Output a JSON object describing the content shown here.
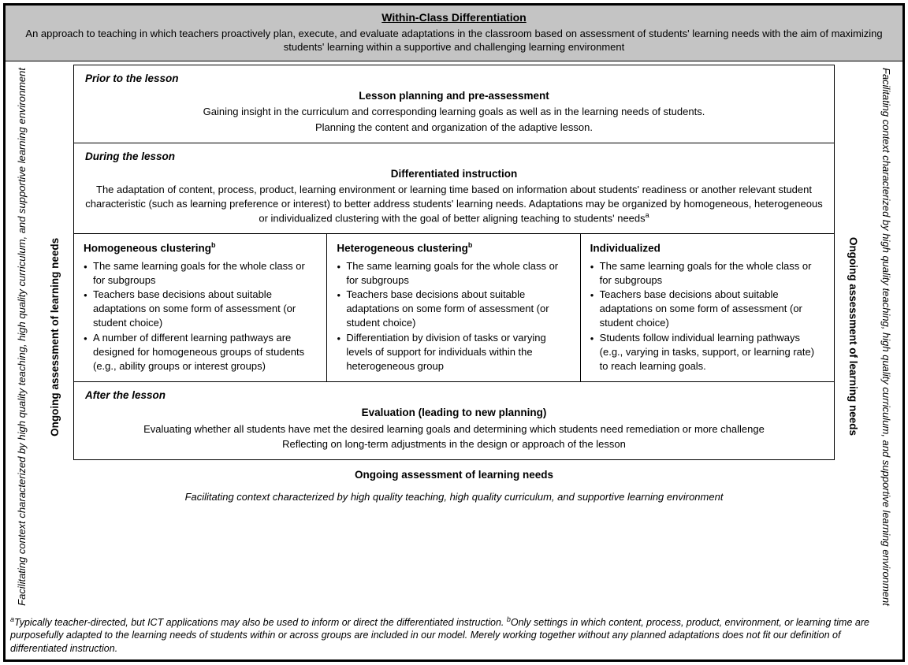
{
  "colors": {
    "header_bg": "#c4c4c4",
    "border": "#000000",
    "bg": "#ffffff",
    "text": "#000000"
  },
  "header": {
    "title": "Within-Class Differentiation",
    "desc": "An approach to teaching in which teachers proactively plan, execute, and evaluate adaptations in the classroom based on assessment of students' learning needs with the aim of maximizing students' learning within a supportive and challenging learning environment"
  },
  "side": {
    "context": "Facilitating context characterized by high quality teaching, high quality curriculum, and supportive learning environment",
    "assessment": "Ongoing assessment of learning needs"
  },
  "prior": {
    "label": "Prior to the lesson",
    "title": "Lesson planning and pre-assessment",
    "line1": "Gaining insight in the curriculum and corresponding learning goals as well as in the learning needs of students.",
    "line2": "Planning the content and organization of the adaptive lesson."
  },
  "during": {
    "label": "During the lesson",
    "title": "Differentiated instruction",
    "body": "The adaptation of content, process, product, learning environment or learning time based on information about students' readiness or another relevant student characteristic (such as learning preference or interest) to better address students' learning needs. Adaptations may be organized by homogeneous, heterogeneous or individualized clustering with the goal of better aligning teaching to students' needs",
    "sup": "a"
  },
  "clusters": [
    {
      "title": "Homogeneous clustering",
      "sup": "b",
      "items": [
        "The same learning goals for the whole class or for subgroups",
        "Teachers base decisions about suitable adaptations on some form of assessment (or student choice)",
        "A number of different learning pathways are designed for homogeneous groups of students (e.g., ability groups or interest groups)"
      ]
    },
    {
      "title": "Heterogeneous clustering",
      "sup": "b",
      "items": [
        "The same learning goals for the whole class or for subgroups",
        "Teachers base decisions about suitable adaptations on some form of assessment (or student choice)",
        "Differentiation by division of tasks or varying levels of support for individuals within the heterogeneous group"
      ]
    },
    {
      "title": "Individualized",
      "sup": "",
      "items": [
        "The same learning goals for the whole class or for subgroups",
        "Teachers base decisions about suitable adaptations on some form of assessment (or student choice)",
        "Students follow individual learning pathways (e.g., varying in tasks, support, or learning rate) to reach learning goals."
      ]
    }
  ],
  "after": {
    "label": "After the lesson",
    "title": "Evaluation (leading to new planning)",
    "line1": "Evaluating whether all students have met the desired learning goals and determining which students need remediation or more challenge",
    "line2": "Reflecting on long-term adjustments in the design or approach of the lesson"
  },
  "bottom": {
    "assessment": "Ongoing assessment of learning needs",
    "context": "Facilitating context characterized by high quality teaching, high quality curriculum, and supportive learning environment"
  },
  "footnotes": {
    "a_sup": "a",
    "a_text": "Typically teacher-directed, but ICT applications may also be used to inform or direct the differentiated instruction. ",
    "b_sup": "b",
    "b_text": "Only settings in which content, process, product, environment, or learning time are purposefully adapted to the learning needs of students within or across groups are included in our model. Merely working together without any planned adaptations does not fit our definition of differentiated instruction."
  }
}
